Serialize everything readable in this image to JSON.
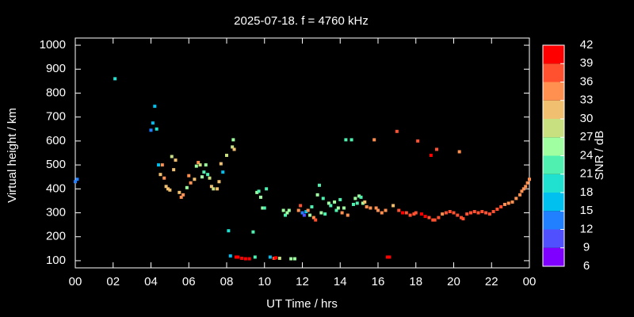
{
  "chart_data": {
    "type": "scatter",
    "title": "2025-07-18. f = 4760 kHz",
    "xlabel": "UT Time / hrs",
    "ylabel": "Virtual height / km",
    "xlim": [
      0,
      24
    ],
    "xticks": [
      {
        "value": 0,
        "label": "00"
      },
      {
        "value": 2,
        "label": "02"
      },
      {
        "value": 4,
        "label": "04"
      },
      {
        "value": 6,
        "label": "06"
      },
      {
        "value": 8,
        "label": "08"
      },
      10,
      12,
      14,
      16,
      18,
      20,
      22,
      {
        "value": 24,
        "label": "00"
      }
    ],
    "ylim": [
      70,
      1030
    ],
    "yticks": [
      100,
      200,
      300,
      400,
      500,
      600,
      700,
      800,
      900,
      1000
    ],
    "colorbar": {
      "label": "SNR / dB",
      "lim": [
        6,
        42
      ],
      "ticks": [
        6,
        9,
        12,
        15,
        18,
        21,
        24,
        27,
        30,
        33,
        36,
        39,
        42
      ],
      "colors": [
        "#8000ff",
        "#5050ff",
        "#2080ff",
        "#00c0f0",
        "#20e0d0",
        "#50f0b0",
        "#a0ffa0",
        "#c8e080",
        "#f0c070",
        "#ff9050",
        "#ff5030",
        "#ff0000"
      ]
    },
    "x": [
      0.0,
      0.1,
      2.1,
      4.0,
      4.1,
      4.2,
      4.3,
      4.4,
      4.5,
      4.6,
      4.7,
      4.8,
      4.9,
      5.0,
      5.1,
      5.2,
      5.3,
      5.5,
      5.6,
      5.7,
      5.9,
      6.0,
      6.1,
      6.3,
      6.4,
      6.5,
      6.6,
      6.7,
      6.8,
      6.9,
      7.0,
      7.1,
      7.2,
      7.3,
      7.5,
      7.6,
      7.7,
      7.8,
      8.0,
      8.1,
      8.2,
      8.3,
      8.35,
      8.4,
      8.5,
      8.6,
      8.8,
      9.0,
      9.2,
      9.4,
      9.5,
      9.6,
      9.7,
      9.8,
      9.9,
      10.0,
      10.1,
      10.3,
      10.5,
      10.6,
      10.8,
      11.0,
      11.1,
      11.2,
      11.3,
      11.4,
      11.6,
      11.8,
      11.9,
      12.0,
      12.1,
      12.2,
      12.3,
      12.4,
      12.5,
      12.6,
      12.7,
      12.8,
      12.9,
      13.0,
      13.1,
      13.2,
      13.4,
      13.5,
      13.7,
      13.8,
      13.9,
      14.0,
      14.1,
      14.2,
      14.3,
      14.4,
      14.6,
      14.7,
      14.8,
      14.9,
      15.0,
      15.1,
      15.2,
      15.3,
      15.4,
      15.6,
      15.8,
      15.9,
      16.0,
      16.2,
      16.4,
      16.5,
      16.6,
      16.8,
      17.0,
      17.1,
      17.3,
      17.5,
      17.7,
      17.9,
      18.0,
      18.1,
      18.3,
      18.5,
      18.7,
      18.8,
      18.9,
      19.0,
      19.1,
      19.2,
      19.4,
      19.6,
      19.8,
      20.0,
      20.2,
      20.3,
      20.4,
      20.5,
      20.7,
      20.9,
      21.1,
      21.3,
      21.5,
      21.7,
      21.9,
      22.1,
      22.3,
      22.5,
      22.7,
      22.9,
      23.1,
      23.3,
      23.5,
      23.6,
      23.7,
      23.8,
      23.9,
      24.0
    ],
    "values": [
      430,
      440,
      860,
      645,
      675,
      745,
      650,
      500,
      460,
      500,
      445,
      410,
      400,
      395,
      535,
      480,
      520,
      385,
      365,
      375,
      405,
      455,
      425,
      440,
      495,
      510,
      500,
      450,
      470,
      500,
      460,
      445,
      410,
      400,
      400,
      430,
      505,
      470,
      540,
      225,
      120,
      575,
      605,
      565,
      115,
      115,
      110,
      108,
      108,
      220,
      115,
      385,
      390,
      365,
      320,
      320,
      400,
      115,
      110,
      112,
      110,
      310,
      290,
      300,
      310,
      108,
      108,
      310,
      330,
      300,
      290,
      305,
      310,
      290,
      325,
      280,
      270,
      375,
      415,
      300,
      360,
      295,
      340,
      330,
      345,
      310,
      320,
      355,
      300,
      320,
      605,
      290,
      605,
      335,
      360,
      340,
      370,
      365,
      340,
      345,
      325,
      320,
      605,
      320,
      310,
      300,
      310,
      115,
      115,
      330,
      640,
      310,
      300,
      300,
      290,
      295,
      300,
      600,
      295,
      285,
      280,
      540,
      270,
      270,
      565,
      280,
      295,
      300,
      305,
      300,
      290,
      555,
      280,
      275,
      295,
      300,
      305,
      300,
      305,
      300,
      295,
      305,
      315,
      325,
      335,
      340,
      345,
      360,
      375,
      390,
      400,
      410,
      425,
      440
    ],
    "snr": [
      12,
      12,
      18,
      12,
      15,
      15,
      18,
      15,
      30,
      33,
      33,
      30,
      30,
      30,
      27,
      30,
      30,
      30,
      33,
      33,
      24,
      33,
      33,
      30,
      24,
      33,
      27,
      24,
      21,
      24,
      21,
      27,
      30,
      27,
      30,
      30,
      30,
      15,
      27,
      18,
      15,
      27,
      24,
      30,
      39,
      39,
      39,
      39,
      39,
      21,
      21,
      24,
      21,
      24,
      24,
      21,
      21,
      15,
      36,
      39,
      27,
      24,
      21,
      24,
      24,
      24,
      24,
      33,
      36,
      12,
      9,
      15,
      33,
      24,
      21,
      33,
      36,
      24,
      21,
      24,
      21,
      21,
      24,
      21,
      24,
      21,
      24,
      21,
      33,
      24,
      21,
      33,
      21,
      21,
      24,
      21,
      24,
      21,
      24,
      30,
      33,
      33,
      33,
      33,
      33,
      33,
      33,
      39,
      39,
      30,
      36,
      36,
      39,
      36,
      36,
      36,
      36,
      36,
      39,
      39,
      36,
      39,
      36,
      36,
      36,
      36,
      33,
      36,
      36,
      36,
      36,
      33,
      36,
      36,
      36,
      36,
      36,
      36,
      36,
      36,
      36,
      36,
      36,
      36,
      33,
      33,
      33,
      33,
      33,
      33,
      33,
      33,
      33,
      33
    ]
  }
}
